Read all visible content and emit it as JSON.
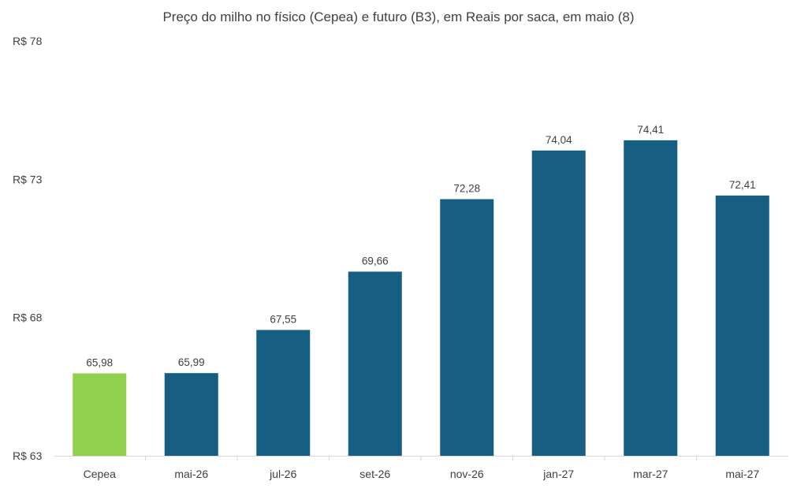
{
  "chart_data": {
    "type": "bar",
    "title": "Preço do milho no físico (Cepea) e futuro (B3), em Reais por saca, em maio (8)",
    "categories": [
      "Cepea",
      "mai-26",
      "jul-26",
      "set-26",
      "nov-26",
      "jan-27",
      "mar-27",
      "mai-27"
    ],
    "values": [
      65.98,
      65.99,
      67.55,
      69.66,
      72.28,
      74.04,
      74.41,
      72.41
    ],
    "value_labels": [
      "65,98",
      "65,99",
      "67,55",
      "69,66",
      "72,28",
      "74,04",
      "74,41",
      "72,41"
    ],
    "ylim": [
      63,
      78
    ],
    "yticks": [
      63,
      68,
      73,
      78
    ],
    "ytick_labels": [
      "R$ 63",
      "R$ 68",
      "R$ 73",
      "R$ 78"
    ],
    "xlabel": "",
    "ylabel": "",
    "grid": false,
    "legend": "none",
    "colors": {
      "highlight": "#92d050",
      "bars": "#175e83",
      "axis": "#d9d9d9",
      "text": "#404040"
    }
  }
}
